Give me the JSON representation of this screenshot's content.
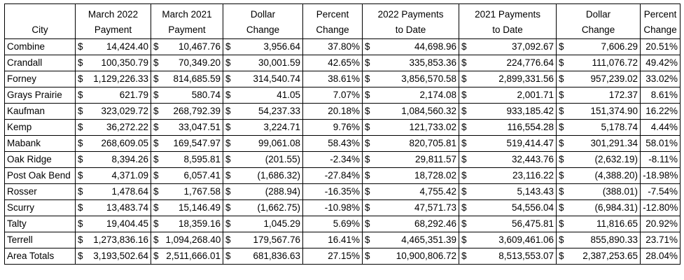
{
  "headers": {
    "city": "City",
    "march_2022": [
      "March 2022",
      "Payment"
    ],
    "march_2021": [
      "March 2021",
      "Payment"
    ],
    "dollar_change": [
      "Dollar",
      "Change"
    ],
    "percent_change": [
      "Percent",
      "Change"
    ],
    "ytd_2022": [
      "2022 Payments",
      "to Date"
    ],
    "ytd_2021": [
      "2021 Payments",
      "to Date"
    ],
    "ytd_dollar_change": [
      "Dollar",
      "Change"
    ],
    "ytd_percent_change": [
      "Percent",
      "Change"
    ]
  },
  "currency_symbol": "$",
  "rows": [
    {
      "city": "Combine",
      "mar22": "14,424.40",
      "mar21": "10,467.76",
      "chg": "3,956.64",
      "pct": "37.80%",
      "ytd22": "44,698.96",
      "ytd21": "37,092.67",
      "ytdchg": "7,606.29",
      "ytdpct": "20.51%"
    },
    {
      "city": "Crandall",
      "mar22": "100,350.79",
      "mar21": "70,349.20",
      "chg": "30,001.59",
      "pct": "42.65%",
      "ytd22": "335,853.36",
      "ytd21": "224,776.64",
      "ytdchg": "111,076.72",
      "ytdpct": "49.42%"
    },
    {
      "city": "Forney",
      "mar22": "1,129,226.33",
      "mar21": "814,685.59",
      "chg": "314,540.74",
      "pct": "38.61%",
      "ytd22": "3,856,570.58",
      "ytd21": "2,899,331.56",
      "ytdchg": "957,239.02",
      "ytdpct": "33.02%"
    },
    {
      "city": "Grays Prairie",
      "mar22": "621.79",
      "mar21": "580.74",
      "chg": "41.05",
      "pct": "7.07%",
      "ytd22": "2,174.08",
      "ytd21": "2,001.71",
      "ytdchg": "172.37",
      "ytdpct": "8.61%"
    },
    {
      "city": "Kaufman",
      "mar22": "323,029.72",
      "mar21": "268,792.39",
      "chg": "54,237.33",
      "pct": "20.18%",
      "ytd22": "1,084,560.32",
      "ytd21": "933,185.42",
      "ytdchg": "151,374.90",
      "ytdpct": "16.22%"
    },
    {
      "city": "Kemp",
      "mar22": "36,272.22",
      "mar21": "33,047.51",
      "chg": "3,224.71",
      "pct": "9.76%",
      "ytd22": "121,733.02",
      "ytd21": "116,554.28",
      "ytdchg": "5,178.74",
      "ytdpct": "4.44%"
    },
    {
      "city": "Mabank",
      "mar22": "268,609.05",
      "mar21": "169,547.97",
      "chg": "99,061.08",
      "pct": "58.43%",
      "ytd22": "820,705.81",
      "ytd21": "519,414.47",
      "ytdchg": "301,291.34",
      "ytdpct": "58.01%"
    },
    {
      "city": "Oak Ridge",
      "mar22": "8,394.26",
      "mar21": "8,595.81",
      "chg": "(201.55)",
      "pct": "-2.34%",
      "ytd22": "29,811.57",
      "ytd21": "32,443.76",
      "ytdchg": "(2,632.19)",
      "ytdpct": "-8.11%"
    },
    {
      "city": "Post Oak Bend",
      "mar22": "4,371.09",
      "mar21": "6,057.41",
      "chg": "(1,686.32)",
      "pct": "-27.84%",
      "ytd22": "18,728.02",
      "ytd21": "23,116.22",
      "ytdchg": "(4,388.20)",
      "ytdpct": "-18.98%"
    },
    {
      "city": "Rosser",
      "mar22": "1,478.64",
      "mar21": "1,767.58",
      "chg": "(288.94)",
      "pct": "-16.35%",
      "ytd22": "4,755.42",
      "ytd21": "5,143.43",
      "ytdchg": "(388.01)",
      "ytdpct": "-7.54%"
    },
    {
      "city": "Scurry",
      "mar22": "13,483.74",
      "mar21": "15,146.49",
      "chg": "(1,662.75)",
      "pct": "-10.98%",
      "ytd22": "47,571.73",
      "ytd21": "54,556.04",
      "ytdchg": "(6,984.31)",
      "ytdpct": "-12.80%"
    },
    {
      "city": "Talty",
      "mar22": "19,404.45",
      "mar21": "18,359.16",
      "chg": "1,045.29",
      "pct": "5.69%",
      "ytd22": "68,292.46",
      "ytd21": "56,475.81",
      "ytdchg": "11,816.65",
      "ytdpct": "20.92%"
    },
    {
      "city": "Terrell",
      "mar22": "1,273,836.16",
      "mar21": "1,094,268.40",
      "chg": "179,567.76",
      "pct": "16.41%",
      "ytd22": "4,465,351.39",
      "ytd21": "3,609,461.06",
      "ytdchg": "855,890.33",
      "ytdpct": "23.71%"
    },
    {
      "city": "Area Totals",
      "mar22": "3,193,502.64",
      "mar21": "2,511,666.01",
      "chg": "681,836.63",
      "pct": "27.15%",
      "ytd22": "10,900,806.72",
      "ytd21": "8,513,553.07",
      "ytdchg": "2,387,253.65",
      "ytdpct": "28.04%"
    }
  ]
}
